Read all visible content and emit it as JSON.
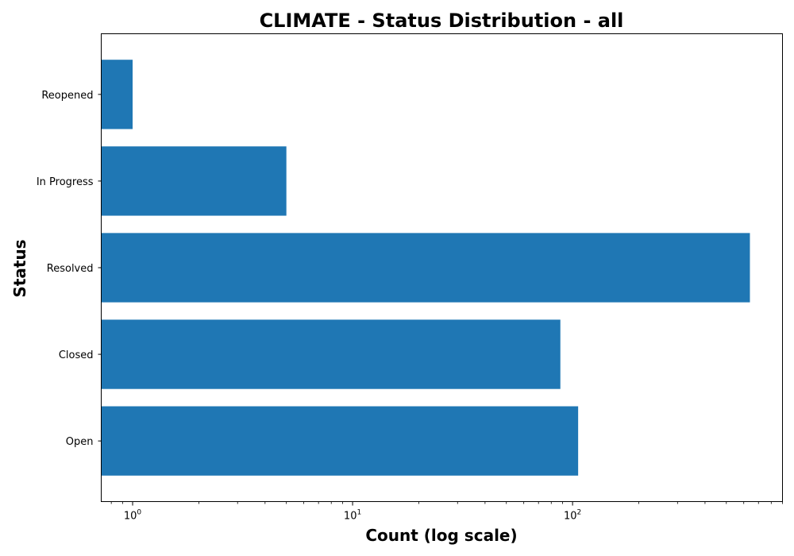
{
  "chart_data": {
    "type": "bar",
    "orientation": "horizontal",
    "title": "CLIMATE - Status Distribution - all",
    "xlabel": "Count (log scale)",
    "ylabel": "Status",
    "x_scale": "log",
    "xlim": [
      0.72,
      900
    ],
    "categories": [
      "Open",
      "Closed",
      "Resolved",
      "In Progress",
      "Reopened"
    ],
    "values": [
      106,
      88,
      640,
      5,
      1
    ],
    "bar_color": "#1f77b4",
    "x_ticks": [
      {
        "base": "10",
        "exp": "0",
        "value": 1
      },
      {
        "base": "10",
        "exp": "1",
        "value": 10
      },
      {
        "base": "10",
        "exp": "2",
        "value": 100
      }
    ],
    "grid": false
  }
}
